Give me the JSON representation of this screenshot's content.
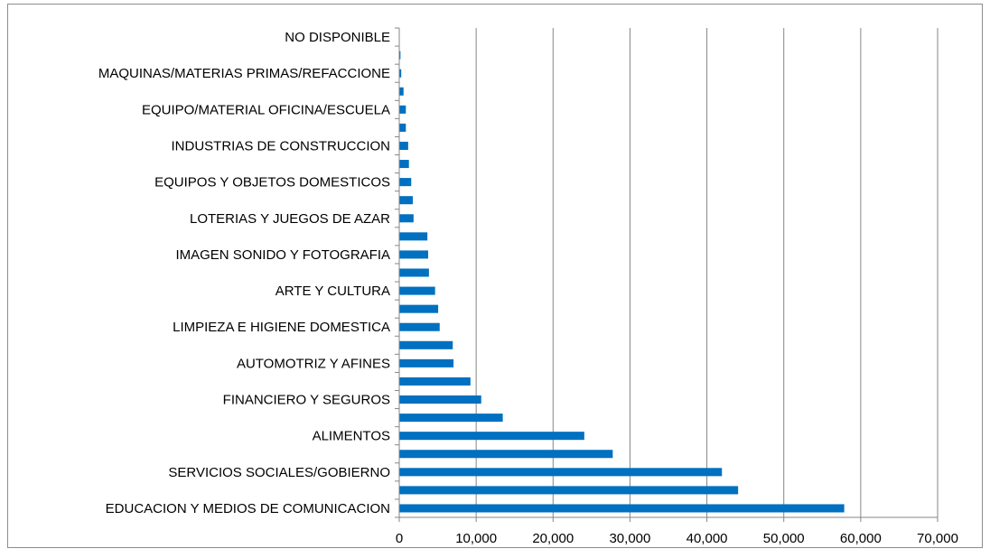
{
  "chart_data": {
    "type": "bar",
    "orientation": "horizontal",
    "categories": [
      "EDUCACION Y MEDIOS DE COMUNICACION",
      "",
      "SERVICIOS SOCIALES/GOBIERNO",
      "",
      "ALIMENTOS",
      "",
      "FINANCIERO Y SEGUROS",
      "",
      "AUTOMOTRIZ Y AFINES",
      "",
      "LIMPIEZA E HIGIENE DOMESTICA",
      "",
      "ARTE Y CULTURA",
      "",
      "IMAGEN SONIDO Y FOTOGRAFIA",
      "",
      "LOTERIAS Y JUEGOS DE AZAR",
      "",
      "EQUIPOS Y OBJETOS DOMESTICOS",
      "",
      "INDUSTRIAS DE CONSTRUCCION",
      "",
      "EQUIPO/MATERIAL OFICINA/ESCUELA",
      "",
      "MAQUINAS/MATERIAS PRIMAS/REFACCIONE",
      "",
      "NO DISPONIBLE"
    ],
    "values": [
      57800,
      44000,
      41900,
      27700,
      24000,
      13400,
      10600,
      9200,
      7000,
      6900,
      5200,
      5000,
      4600,
      3800,
      3700,
      3600,
      1800,
      1700,
      1500,
      1200,
      1100,
      800,
      800,
      500,
      200,
      100,
      0
    ],
    "xlim": [
      0,
      70000
    ],
    "xticks": [
      "0",
      "10,000",
      "20,000",
      "30,000",
      "40,000",
      "50,000",
      "60,000",
      "70,000"
    ],
    "grid": "vertical",
    "bar_color": "#0070c0",
    "grid_color": "#868686",
    "legend": "none"
  }
}
